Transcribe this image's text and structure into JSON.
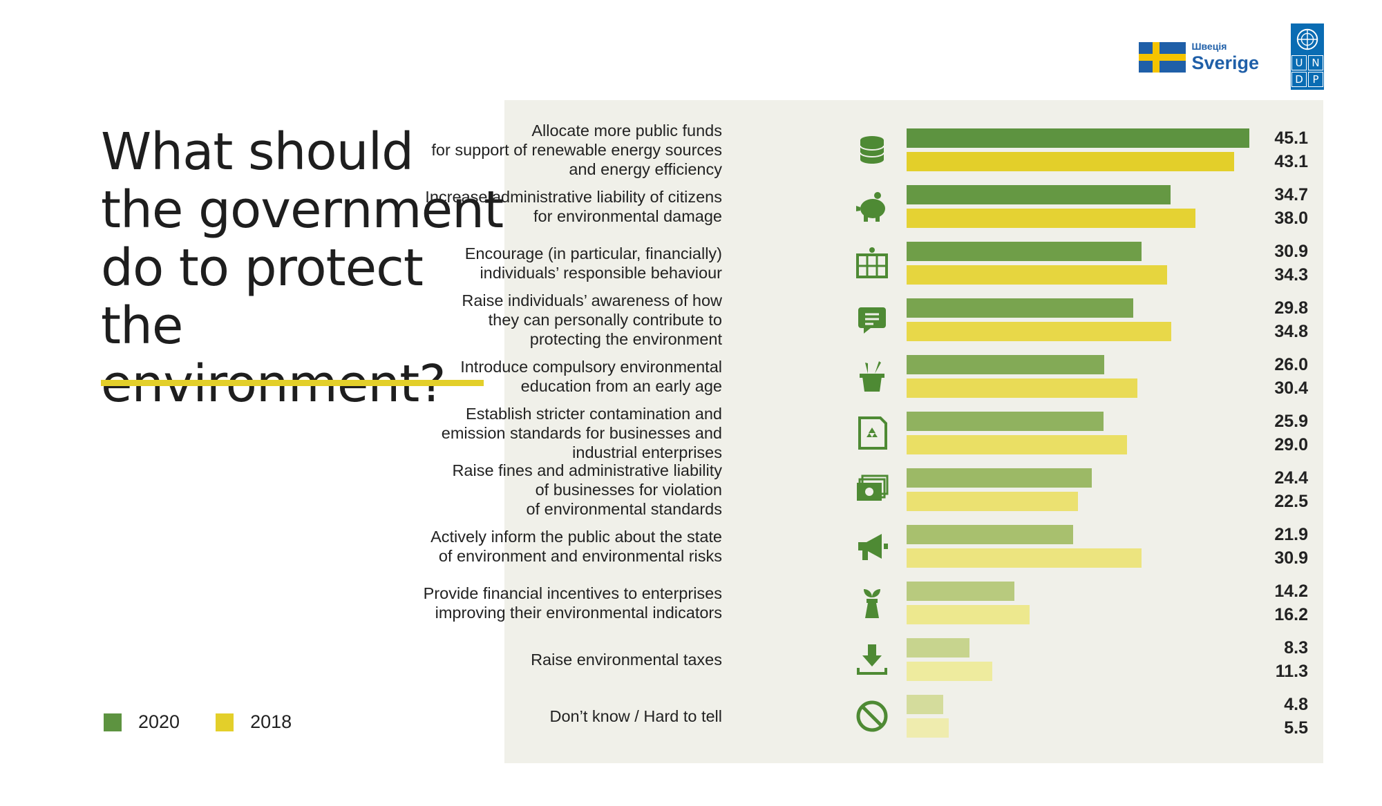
{
  "title": "What should\nthe government\ndo to protect\nthe environment?",
  "logos": {
    "sweden_small": "Швеція",
    "sweden_big": "Sverige",
    "undp_letters": [
      "U",
      "N",
      "D",
      "P"
    ]
  },
  "legend": [
    {
      "label": "2020",
      "color": "#5d9340"
    },
    {
      "label": "2018",
      "color": "#e3cf2a"
    }
  ],
  "colors": {
    "title_rule": "#e3cf2a",
    "panel_bg": "#f0f0e9",
    "icon": "#4e8a34"
  },
  "chart_data": {
    "type": "bar",
    "orientation": "horizontal",
    "xlim": [
      0,
      50
    ],
    "series": [
      {
        "name": "2020"
      },
      {
        "name": "2018"
      }
    ],
    "rows": [
      {
        "label": "Allocate more public funds\nfor support of renewable energy sources\nand energy efficiency",
        "icon": "coins-icon",
        "v2020": 45.1,
        "v2018": 43.1,
        "c2020": "#5d9340",
        "c2018": "#e3cf2a"
      },
      {
        "label": "Increase administrative liability of citizens\nfor environmental damage",
        "icon": "piggy-bank-icon",
        "v2020": 34.7,
        "v2018": 38.0,
        "c2020": "#659843",
        "c2018": "#e5d233"
      },
      {
        "label": "Encourage (in particular, financially)\nindividuals’ responsible behaviour",
        "icon": "solar-panel-icon",
        "v2020": 30.9,
        "v2018": 34.3,
        "c2020": "#6f9e48",
        "c2018": "#e6d53e"
      },
      {
        "label": "Raise individuals’ awareness of how\nthey can personally contribute to\nprotecting the environment",
        "icon": "chat-bubble-icon",
        "v2020": 29.8,
        "v2018": 34.8,
        "c2020": "#79a44f",
        "c2018": "#e8d849"
      },
      {
        "label": "Introduce compulsory environmental\neducation from an early age",
        "icon": "pencil-cup-icon",
        "v2020": 26.0,
        "v2018": 30.4,
        "c2020": "#83aa56",
        "c2018": "#e9db56"
      },
      {
        "label": "Establish stricter contamination and\nemission standards for businesses and\nindustrial enterprises",
        "icon": "recycle-document-icon",
        "v2020": 25.9,
        "v2018": 29.0,
        "c2020": "#90b25f",
        "c2018": "#eadf64"
      },
      {
        "label": "Raise fines and administrative liability\nof businesses for violation\nof environmental standards",
        "icon": "banknotes-icon",
        "v2020": 24.4,
        "v2018": 22.5,
        "c2020": "#9cb966",
        "c2018": "#ebe171"
      },
      {
        "label": "Actively inform the public about the state\nof environment and environmental risks",
        "icon": "megaphone-icon",
        "v2020": 21.9,
        "v2018": 30.9,
        "c2020": "#a8c06e",
        "c2018": "#ece47f"
      },
      {
        "label": "Provide financial incentives to enterprises\nimproving their environmental indicators",
        "icon": "sprout-chimney-icon",
        "v2020": 14.2,
        "v2018": 16.2,
        "c2020": "#b8ca7e",
        "c2018": "#ede88e"
      },
      {
        "label": "Raise environmental taxes",
        "icon": "download-arrow-icon",
        "v2020": 8.3,
        "v2018": 11.3,
        "c2020": "#c7d48e",
        "c2018": "#eeeb9e"
      },
      {
        "label": "Don’t know / Hard to tell",
        "icon": "no-sign-icon",
        "v2020": 4.8,
        "v2018": 5.5,
        "c2020": "#d4dc9c",
        "c2018": "#efecae"
      }
    ]
  }
}
